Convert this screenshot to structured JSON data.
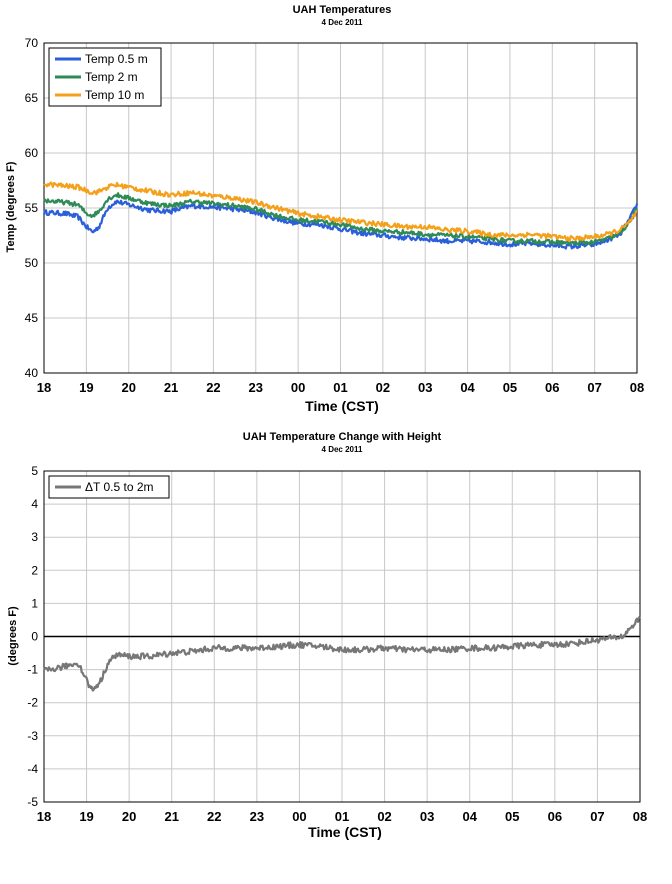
{
  "chart_data": [
    {
      "type": "line",
      "title": "UAH Temperatures",
      "subtitle": "4 Dec 2011",
      "xlabel": "Time (CST)",
      "ylabel": "Temp (degrees F)",
      "ylim": [
        40,
        70
      ],
      "yticks": [
        40,
        45,
        50,
        55,
        60,
        65,
        70
      ],
      "xlim": [
        0,
        14
      ],
      "xticks": [
        "18",
        "19",
        "20",
        "21",
        "22",
        "23",
        "00",
        "01",
        "02",
        "03",
        "04",
        "05",
        "06",
        "07",
        "08"
      ],
      "grid": true,
      "legend_position": "top-left",
      "series": [
        {
          "name": "Temp 0.5 m",
          "color": "#2b5fd9",
          "x": [
            0,
            0.5,
            0.8,
            1.0,
            1.15,
            1.3,
            1.5,
            1.7,
            2.0,
            2.5,
            3.0,
            3.5,
            4.0,
            4.5,
            5.0,
            5.5,
            6.0,
            6.5,
            7.0,
            7.5,
            8.0,
            8.5,
            9.0,
            9.5,
            10.0,
            10.5,
            11.0,
            11.5,
            12.0,
            12.5,
            13.0,
            13.3,
            13.6,
            13.8,
            14.0
          ],
          "y": [
            54.6,
            54.5,
            54.2,
            53.3,
            52.8,
            53.3,
            55.0,
            55.6,
            55.3,
            54.8,
            54.7,
            55.2,
            55.1,
            54.9,
            54.6,
            54.0,
            53.6,
            53.5,
            53.1,
            52.7,
            52.5,
            52.3,
            52.2,
            52.0,
            52.0,
            51.9,
            51.7,
            51.8,
            51.6,
            51.5,
            51.7,
            52.1,
            52.6,
            53.8,
            55.3
          ]
        },
        {
          "name": "Temp 2 m",
          "color": "#2e8b57",
          "x": [
            0,
            0.5,
            0.8,
            1.0,
            1.15,
            1.3,
            1.5,
            1.7,
            2.0,
            2.5,
            3.0,
            3.5,
            4.0,
            4.5,
            5.0,
            5.5,
            6.0,
            6.5,
            7.0,
            7.5,
            8.0,
            8.5,
            9.0,
            9.5,
            10.0,
            10.5,
            11.0,
            11.5,
            12.0,
            12.5,
            13.0,
            13.3,
            13.6,
            13.8,
            14.0
          ],
          "y": [
            55.7,
            55.5,
            55.3,
            54.5,
            54.3,
            54.7,
            55.8,
            56.2,
            55.9,
            55.4,
            55.2,
            55.6,
            55.4,
            55.2,
            54.9,
            54.3,
            53.9,
            53.8,
            53.5,
            53.1,
            52.9,
            52.8,
            52.6,
            52.5,
            52.4,
            52.2,
            52.0,
            52.0,
            51.9,
            51.8,
            51.9,
            52.2,
            52.7,
            53.6,
            54.8
          ]
        },
        {
          "name": "Temp 10 m",
          "color": "#f5a01a",
          "x": [
            0,
            0.5,
            0.8,
            1.0,
            1.15,
            1.3,
            1.5,
            1.7,
            2.0,
            2.5,
            3.0,
            3.5,
            4.0,
            4.5,
            5.0,
            5.5,
            6.0,
            6.5,
            7.0,
            7.5,
            8.0,
            8.5,
            9.0,
            9.5,
            10.0,
            10.5,
            11.0,
            11.5,
            12.0,
            12.5,
            13.0,
            13.3,
            13.6,
            13.8,
            14.0
          ],
          "y": [
            57.2,
            57.0,
            56.9,
            56.6,
            56.4,
            56.5,
            56.9,
            57.1,
            56.9,
            56.5,
            56.2,
            56.4,
            56.1,
            55.9,
            55.5,
            55.0,
            54.5,
            54.2,
            53.9,
            53.7,
            53.5,
            53.3,
            53.3,
            53.0,
            52.9,
            52.6,
            52.5,
            52.6,
            52.4,
            52.2,
            52.4,
            52.6,
            53.0,
            53.6,
            54.6
          ]
        }
      ]
    },
    {
      "type": "line",
      "title": "UAH Temperature Change with Height",
      "subtitle": "4 Dec 2011",
      "xlabel": "Time (CST)",
      "ylabel": "(degrees F)",
      "ylim": [
        -5,
        5
      ],
      "yticks": [
        -5,
        -4,
        -3,
        -2,
        -1,
        0,
        1,
        2,
        3,
        4,
        5
      ],
      "xlim": [
        0,
        14
      ],
      "xticks": [
        "18",
        "19",
        "20",
        "21",
        "22",
        "23",
        "00",
        "01",
        "02",
        "03",
        "04",
        "05",
        "06",
        "07",
        "08"
      ],
      "grid": true,
      "zero_line": true,
      "legend_position": "top-left",
      "series": [
        {
          "name": "ΔT 0.5 to 2m",
          "color": "#777777",
          "x": [
            0,
            0.5,
            0.8,
            1.0,
            1.1,
            1.2,
            1.35,
            1.5,
            1.7,
            2.0,
            2.5,
            3.0,
            3.5,
            4.0,
            4.5,
            5.0,
            5.5,
            6.0,
            6.5,
            7.0,
            7.5,
            8.0,
            8.5,
            9.0,
            9.5,
            10.0,
            10.5,
            11.0,
            11.5,
            12.0,
            12.5,
            13.0,
            13.3,
            13.6,
            13.8,
            14.0
          ],
          "y": [
            -1.05,
            -0.9,
            -0.8,
            -1.3,
            -1.6,
            -1.55,
            -1.3,
            -0.8,
            -0.55,
            -0.6,
            -0.6,
            -0.5,
            -0.45,
            -0.35,
            -0.35,
            -0.35,
            -0.3,
            -0.25,
            -0.3,
            -0.4,
            -0.4,
            -0.35,
            -0.4,
            -0.4,
            -0.4,
            -0.35,
            -0.35,
            -0.3,
            -0.25,
            -0.25,
            -0.2,
            -0.1,
            -0.05,
            0.0,
            0.3,
            0.55
          ]
        }
      ]
    }
  ]
}
